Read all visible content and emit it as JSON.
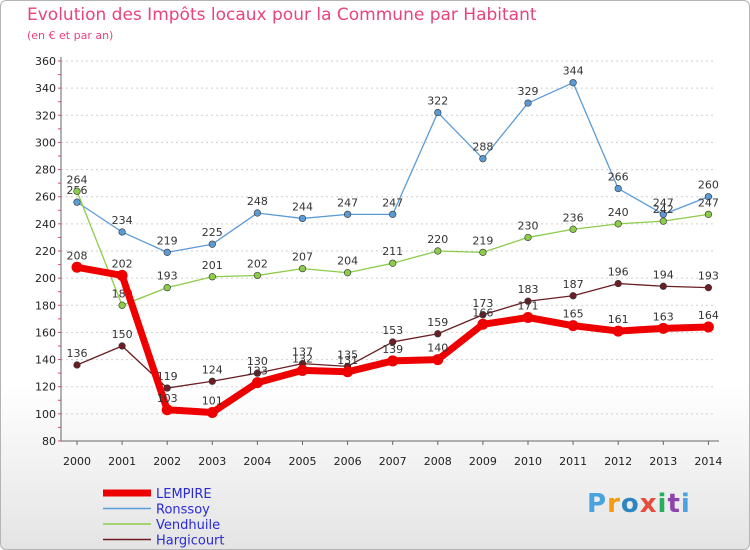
{
  "header": {
    "title": "Evolution des Impôts locaux pour la Commune par Habitant",
    "subtitle": "(en € et par an)"
  },
  "logo": {
    "text": "Proxiti",
    "colors": [
      "#4aa3df",
      "#f39c12",
      "#2e86c1",
      "#e74c3c",
      "#27ae60",
      "#8e44ad",
      "#4aa3df"
    ]
  },
  "chart_data": {
    "type": "line",
    "x": [
      2000,
      2001,
      2002,
      2003,
      2004,
      2005,
      2006,
      2007,
      2008,
      2009,
      2010,
      2011,
      2012,
      2013,
      2014
    ],
    "ylim": [
      80,
      360
    ],
    "ytick_step": 20,
    "grid": "horizontal-dashed",
    "legend_position": "bottom-left",
    "series": [
      {
        "name": "Ronssoy",
        "color": "#5b9bd5",
        "values": [
          256,
          234,
          219,
          225,
          248,
          244,
          247,
          247,
          322,
          288,
          329,
          344,
          266,
          247,
          260
        ]
      },
      {
        "name": "Vendhuile",
        "color": "#8ccc4a",
        "values": [
          264,
          180,
          193,
          201,
          202,
          207,
          204,
          211,
          220,
          219,
          230,
          236,
          240,
          242,
          247
        ]
      },
      {
        "name": "Hargicourt",
        "color": "#6b1f24",
        "values": [
          136,
          150,
          119,
          124,
          130,
          137,
          135,
          153,
          159,
          173,
          183,
          187,
          196,
          194,
          193
        ]
      },
      {
        "name": "LEMPIRE",
        "color": "#ee0000",
        "values": [
          208,
          202,
          103,
          101,
          123,
          132,
          131,
          139,
          140,
          166,
          171,
          165,
          161,
          163,
          164
        ]
      }
    ],
    "legend_order": [
      "LEMPIRE",
      "Ronssoy",
      "Vendhuile",
      "Hargicourt"
    ]
  }
}
